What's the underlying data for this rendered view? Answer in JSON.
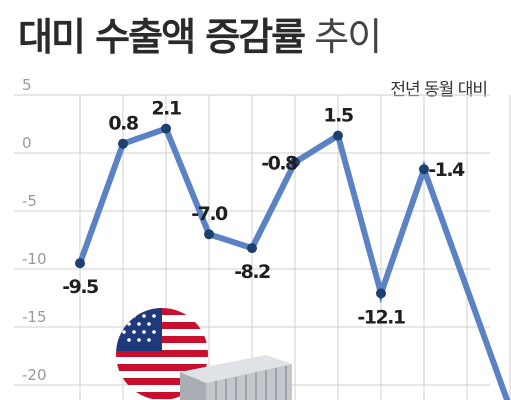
{
  "title": {
    "bold": "대미 수출액 증감률",
    "light": "추이"
  },
  "chart_data": {
    "type": "line",
    "title": "대미 수출액 증감률 추이",
    "unit_label": "전년 동월 대비",
    "x": [
      1,
      2,
      3,
      4,
      5,
      6,
      7,
      8,
      9,
      10,
      11
    ],
    "values": [
      -9.5,
      0.8,
      2.1,
      -7.0,
      -8.2,
      -0.8,
      1.5,
      -12.1,
      -1.4,
      null,
      -22
    ],
    "data_labels": [
      "-9.5",
      "0.8",
      "2.1",
      "-7.0",
      "-8.2",
      "-0.8",
      "1.5",
      "-12.1",
      "-1.4",
      "",
      ""
    ],
    "yticks": [
      5,
      0,
      -5,
      -10,
      -15,
      -20
    ],
    "ytick_labels": [
      "5",
      "0",
      "-5",
      "-10",
      "-15",
      "-20"
    ],
    "ylim": [
      -22,
      5
    ],
    "grid": true,
    "line_color": "#5b83c4",
    "marker_color": "#1f3f6e"
  },
  "colors": {
    "grid": "#cfcfcf",
    "flag_red": "#c8102e",
    "flag_blue": "#1f3a7a",
    "container": "#b9bec4"
  }
}
